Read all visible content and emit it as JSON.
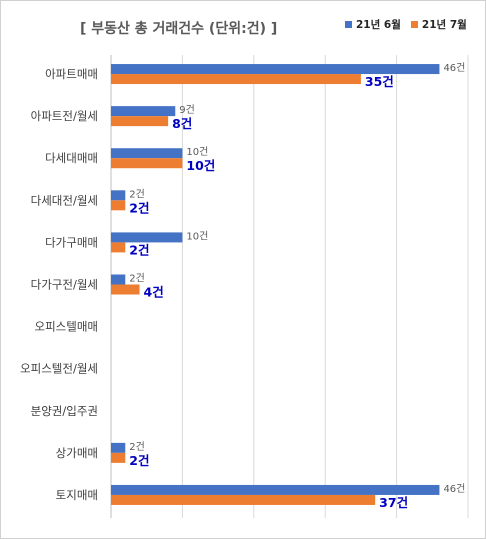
{
  "chart_data": {
    "type": "bar",
    "orientation": "horizontal",
    "title": "[ 부동산 총 거래건수 (단위:건) ]",
    "categories": [
      "아파트매매",
      "아파트전/월세",
      "다세대매매",
      "다세대전/월세",
      "다가구매매",
      "다가구전/월세",
      "오피스텔매매",
      "오피스텔전/월세",
      "분양권/입주권",
      "상가매매",
      "토지매매"
    ],
    "series": [
      {
        "name": "21년 6월",
        "color": "#4472c4",
        "values": [
          46,
          9,
          10,
          2,
          10,
          2,
          null,
          null,
          null,
          2,
          46
        ],
        "labels": [
          "46건",
          "9건",
          "10건",
          "2건",
          "10건",
          "2건",
          "",
          "",
          "",
          "2건",
          "46건"
        ]
      },
      {
        "name": "21년 7월",
        "color": "#ed7d31",
        "values": [
          35,
          8,
          10,
          2,
          2,
          4,
          null,
          null,
          null,
          2,
          37
        ],
        "labels": [
          "35건",
          "8건",
          "10건",
          "2건",
          "2건",
          "4건",
          "",
          "",
          "",
          "2건",
          "37건"
        ]
      }
    ],
    "xlim": [
      0,
      50
    ],
    "grid": true,
    "legend_position": "top-right"
  }
}
